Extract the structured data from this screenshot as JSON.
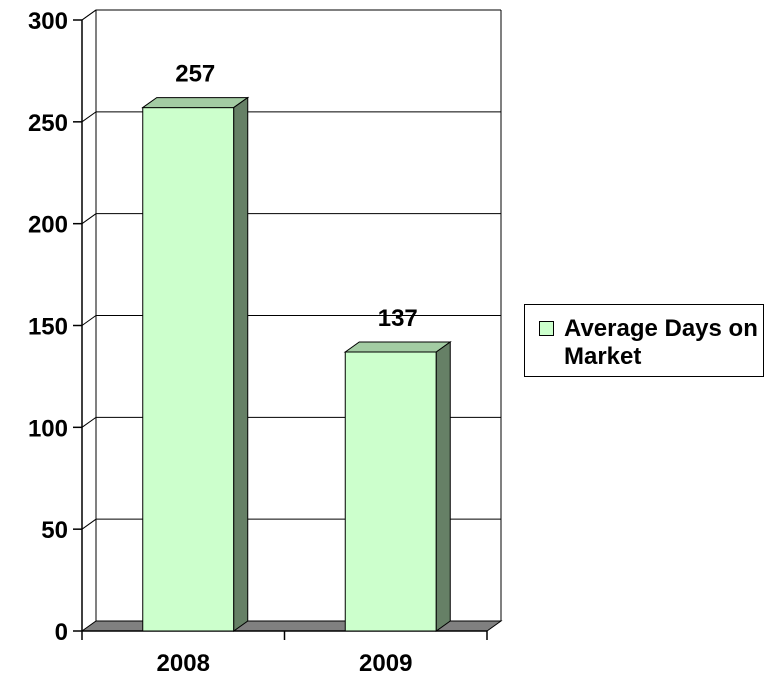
{
  "chart_data": {
    "type": "bar",
    "style": "3d-column",
    "categories": [
      "2008",
      "2009"
    ],
    "series": [
      {
        "name": "Average Days on Market",
        "values": [
          257,
          137
        ]
      }
    ],
    "title": "",
    "xlabel": "",
    "ylabel": "",
    "ylim": [
      0,
      300
    ],
    "yticks": [
      "0",
      "50",
      "100",
      "150",
      "200",
      "250",
      "300"
    ],
    "data_labels": [
      "257",
      "137"
    ],
    "grid": true,
    "legend_position": "right",
    "colors": {
      "bar_front": "#ccffcc",
      "bar_top": "#a3cca3",
      "bar_side": "#668066",
      "floor": "#808080",
      "background": "#ffffff"
    }
  }
}
